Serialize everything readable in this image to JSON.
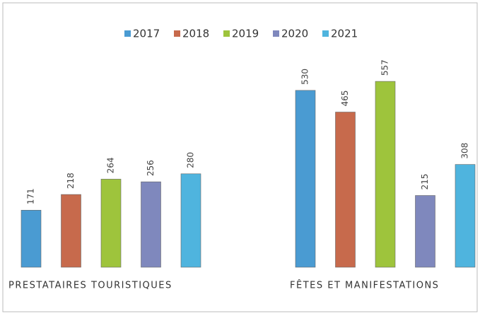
{
  "chart_data": {
    "type": "bar",
    "categories": [
      "PRESTATAIRES TOURISTIQUES",
      "FÊTES ET MANIFESTATIONS"
    ],
    "series": [
      {
        "name": "2017",
        "color": "#4a9bd2",
        "values": [
          171,
          530
        ]
      },
      {
        "name": "2018",
        "color": "#c76a4c",
        "values": [
          218,
          465
        ]
      },
      {
        "name": "2019",
        "color": "#9ec43c",
        "values": [
          264,
          557
        ]
      },
      {
        "name": "2020",
        "color": "#7f88bd",
        "values": [
          256,
          215
        ]
      },
      {
        "name": "2021",
        "color": "#4fb4de",
        "values": [
          280,
          308
        ]
      }
    ]
  }
}
